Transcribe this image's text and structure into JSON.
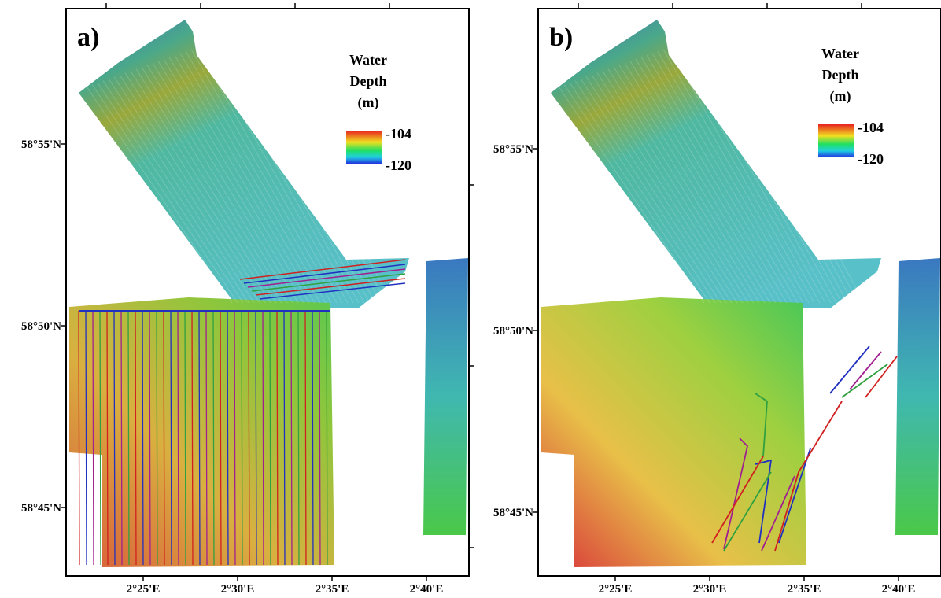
{
  "panels": [
    {
      "label": "a)",
      "legend": {
        "title": [
          "Water",
          "Depth",
          "(m)"
        ],
        "max": -104,
        "min": -120
      },
      "lat_labels": [
        "58°55'N",
        "58°50'N",
        "58°45'N"
      ],
      "lon_labels": [
        "2°25'E",
        "2°30'E",
        "2°35'E",
        "2°40'E"
      ]
    },
    {
      "label": "b)",
      "legend": {
        "title": [
          "Water",
          "Depth",
          "(m)"
        ],
        "max": -104,
        "min": -120
      },
      "lat_labels": [
        "58°55'N",
        "58°50'N",
        "58°45'N"
      ],
      "lon_labels": [
        "2°25'E",
        "2°30'E",
        "2°35'E",
        "2°40'E"
      ]
    }
  ]
}
